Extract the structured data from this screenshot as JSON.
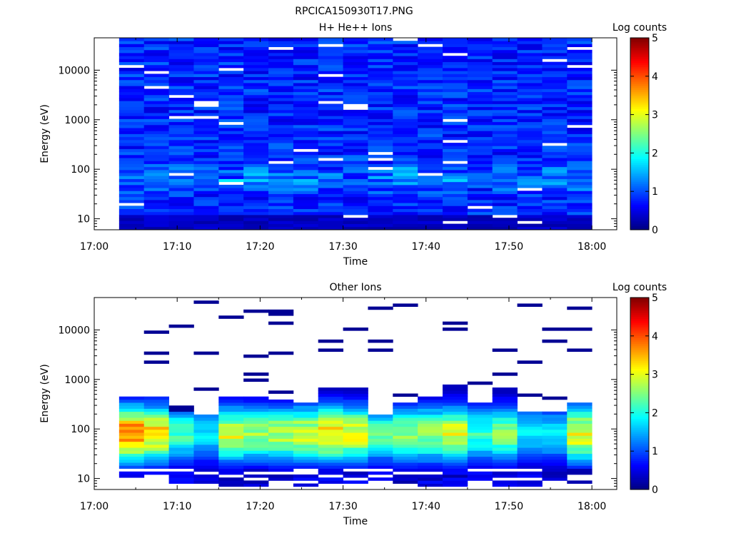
{
  "figure": {
    "filename": "RPCICA150930T17.PNG"
  },
  "colorbar": {
    "label": "Log counts",
    "range": [
      0,
      5
    ],
    "ticks": [
      "0",
      "1",
      "2",
      "3",
      "4",
      "5"
    ],
    "colormap": "jet"
  },
  "chart_data": [
    {
      "type": "heatmap",
      "title": "H+ He++ Ions",
      "xlabel": "Time",
      "ylabel": "Energy (eV)",
      "yscale": "log",
      "xlim": [
        "17:00",
        "18:03"
      ],
      "ylim": [
        6,
        45000
      ],
      "x_ticks": [
        "17:00",
        "17:10",
        "17:20",
        "17:30",
        "17:40",
        "17:50",
        "18:00"
      ],
      "y_ticks": [
        "10",
        "100",
        "1000",
        "10000"
      ],
      "scan_start_times": [
        "17:03",
        "17:06",
        "17:09",
        "17:12",
        "17:15",
        "17:18",
        "17:21",
        "17:24",
        "17:27",
        "17:30",
        "17:33",
        "17:36",
        "17:39",
        "17:42",
        "17:45",
        "17:48",
        "17:51",
        "17:54",
        "17:57"
      ],
      "scan_end_time": "18:00",
      "energy_bins_count": 64,
      "level_log_counts": {
        "typical": 1.0,
        "low_energy_peak_near_eV": 70,
        "low_energy_peak": 1.8,
        "range": [
          0,
          1.8
        ]
      }
    },
    {
      "type": "heatmap",
      "title": "Other Ions",
      "xlabel": "Time",
      "ylabel": "Energy (eV)",
      "yscale": "log",
      "xlim": [
        "17:00",
        "18:03"
      ],
      "ylim": [
        6,
        45000
      ],
      "x_ticks": [
        "17:00",
        "17:10",
        "17:20",
        "17:30",
        "17:40",
        "17:50",
        "18:00"
      ],
      "y_ticks": [
        "10",
        "100",
        "1000",
        "10000"
      ],
      "scan_start_times": [
        "17:03",
        "17:06",
        "17:09",
        "17:12",
        "17:15",
        "17:18",
        "17:21",
        "17:24",
        "17:27",
        "17:30",
        "17:33",
        "17:36",
        "17:39",
        "17:42",
        "17:45",
        "17:48",
        "17:51",
        "17:54",
        "17:57"
      ],
      "scan_end_time": "18:00",
      "energy_bins_count": 64,
      "peak_log_counts_per_scan": [
        3.9,
        3.4,
        2.2,
        1.8,
        3.0,
        2.7,
        2.8,
        3.0,
        3.4,
        3.1,
        2.3,
        2.6,
        2.7,
        3.1,
        2.2,
        2.6,
        1.8,
        1.8,
        3.2
      ],
      "peak_energy_eV": 80,
      "upper_edge_eV_per_scan": [
        450,
        430,
        220,
        190,
        480,
        430,
        400,
        350,
        650,
        650,
        190,
        350,
        450,
        800,
        350,
        650,
        210,
        230,
        340
      ],
      "sparse_high_energy_lines_eV": [
        [],
        [
          8800,
          3300,
          2100
        ],
        [
          12000,
          260,
          230
        ],
        [
          37000,
          3300,
          650
        ],
        [
          18000
        ],
        [
          23000,
          3100,
          1350,
          950
        ],
        [
          25000,
          20000,
          13000,
          3300,
          560
        ],
        [],
        [
          6000,
          3700
        ],
        [
          11000,
          600
        ],
        [
          27000,
          5800,
          3900
        ],
        [
          34000,
          500
        ],
        [],
        [
          14000,
          11000,
          780
        ],
        [
          800
        ],
        [
          3700,
          1200,
          600
        ],
        [
          30000,
          2400,
          500
        ],
        [
          10500,
          5800,
          400
        ],
        [
          27000,
          10500,
          3900
        ]
      ]
    }
  ]
}
